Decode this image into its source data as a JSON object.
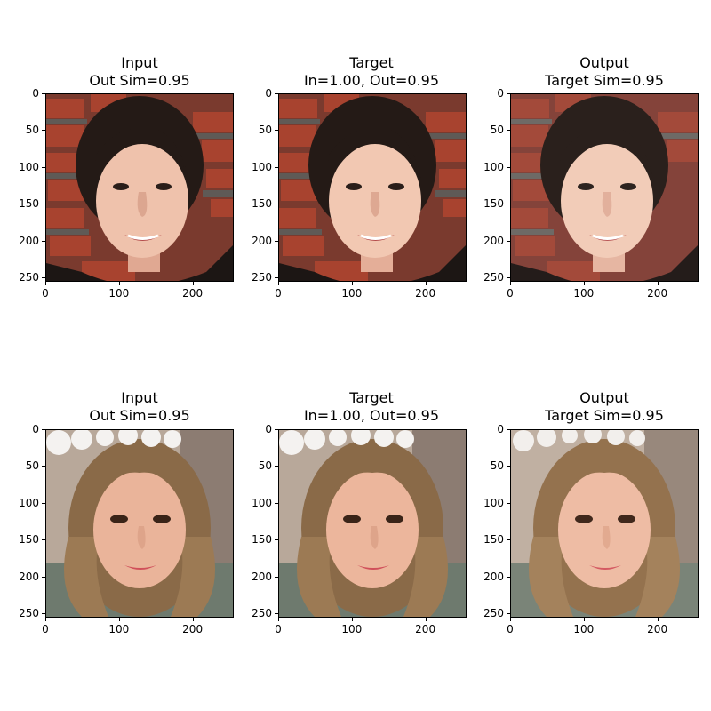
{
  "figure": {
    "panels": [
      {
        "id": "r0c0",
        "title_line1": "Input",
        "title_line2": "Out Sim=0.95",
        "image": "face-photo-woman-dark-hair-brick-wall"
      },
      {
        "id": "r0c1",
        "title_line1": "Target",
        "title_line2": "In=1.00, Out=0.95",
        "image": "face-photo-woman-dark-hair-brick-wall"
      },
      {
        "id": "r0c2",
        "title_line1": "Output",
        "title_line2": "Target Sim=0.95",
        "image": "face-photo-woman-dark-hair-brick-wall-reconstructed"
      },
      {
        "id": "r1c0",
        "title_line1": "Input",
        "title_line2": "Out Sim=0.95",
        "image": "face-photo-girl-flower-crown"
      },
      {
        "id": "r1c1",
        "title_line1": "Target",
        "title_line2": "In=1.00, Out=0.95",
        "image": "face-photo-girl-flower-crown"
      },
      {
        "id": "r1c2",
        "title_line1": "Output",
        "title_line2": "Target Sim=0.95",
        "image": "face-photo-girl-flower-crown-reconstructed"
      }
    ],
    "y_ticks": [
      "0",
      "50",
      "100",
      "150",
      "200",
      "250"
    ],
    "x_ticks": [
      "0",
      "100",
      "200"
    ]
  },
  "colors": {
    "brick_red": "#9a3b2c",
    "mortar_gray": "#6e6a66",
    "skin_light": "#f0c4b0",
    "hair_dark": "#241a16",
    "hair_light_brown": "#8a6a48",
    "flower_white": "#f4f2f0",
    "background_beige": "#b8a89a"
  }
}
